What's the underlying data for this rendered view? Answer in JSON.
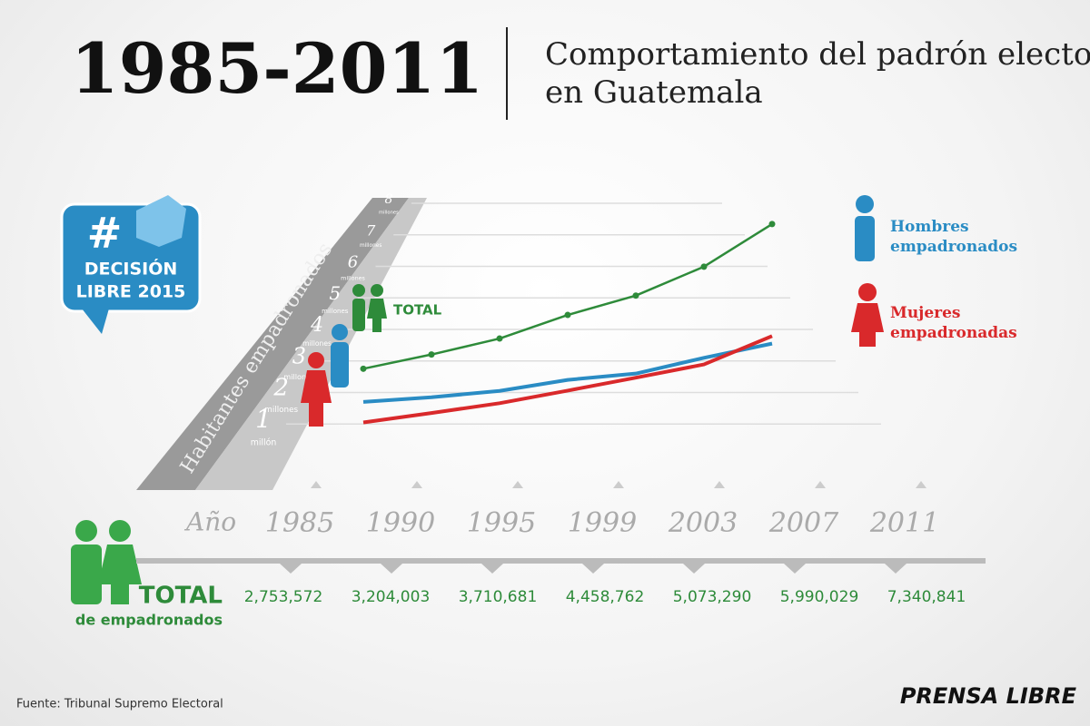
{
  "chart_data": {
    "type": "line",
    "title": "1985-2011",
    "subtitle": "Comportamiento del padrón electoral en Guatemala",
    "ylabel": "Habitantes empadronados",
    "xlabel": "Año",
    "categories": [
      "1985",
      "1990",
      "1995",
      "1999",
      "2003",
      "2007",
      "2011"
    ],
    "ylim": [
      0,
      8
    ],
    "yticks": [
      1,
      2,
      3,
      4,
      5,
      6,
      7,
      8
    ],
    "ytick_units": [
      "millón",
      "millones",
      "millones",
      "millones",
      "millones",
      "millones",
      "millones",
      "millones"
    ],
    "grid": true,
    "series": [
      {
        "name": "TOTAL",
        "color": "#2e8b3a",
        "values": [
          2.753572,
          3.204003,
          3.710681,
          4.458762,
          5.07329,
          5.990029,
          7.340841
        ],
        "value_labels": [
          "2,753,572",
          "3,204,003",
          "3,710,681",
          "4,458,762",
          "5,073,290",
          "5,990,029",
          "7,340,841"
        ]
      },
      {
        "name": "Hombres empadronados",
        "color": "#2a8cc4",
        "values": [
          1.7,
          1.85,
          2.05,
          2.4,
          2.6,
          3.1,
          3.55
        ]
      },
      {
        "name": "Mujeres empadronadas",
        "color": "#d9292b",
        "values": [
          1.05,
          1.35,
          1.66,
          2.06,
          2.47,
          2.89,
          3.79
        ]
      }
    ],
    "total_title": "TOTAL",
    "total_subtitle": "de empadronados"
  },
  "badge": {
    "symbol": "#",
    "line1": "DECISIÓN",
    "line2": "LIBRE 2015"
  },
  "source": "Fuente: Tribunal Supremo Electoral",
  "logo": "PRENSA LIBRE"
}
